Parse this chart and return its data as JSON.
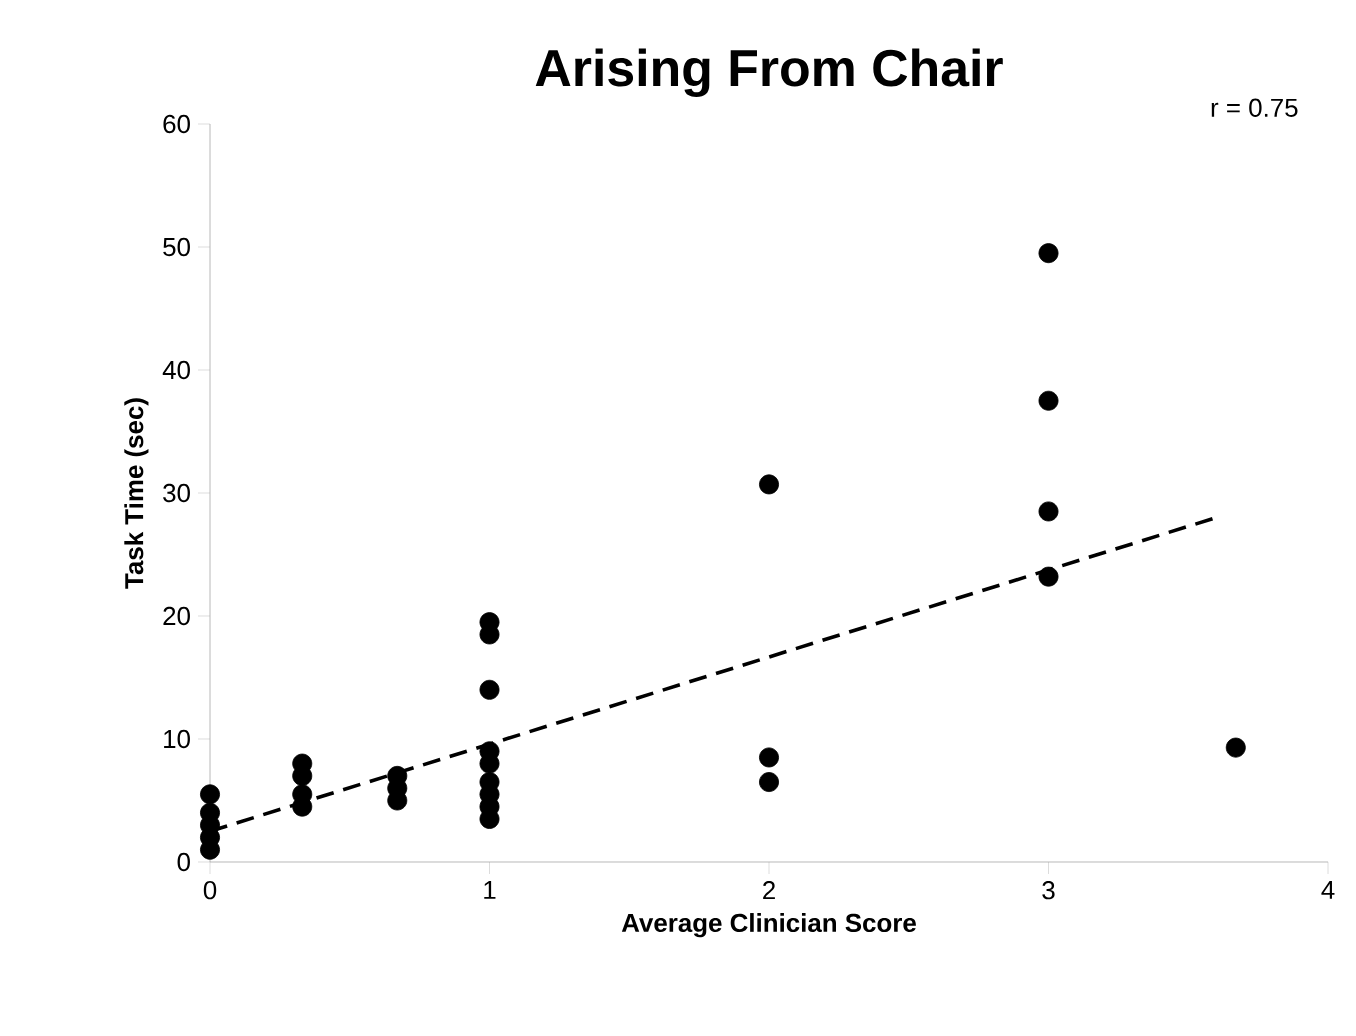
{
  "chart_data": {
    "type": "scatter",
    "title": "Arising From Chair",
    "xlabel": "Average Clinician Score",
    "ylabel": "Task Time (sec)",
    "annotations": [
      "r = 0.75"
    ],
    "xlim": [
      0,
      4
    ],
    "xticks": [
      0,
      1,
      2,
      3,
      4
    ],
    "ylim": [
      0,
      60
    ],
    "yticks": [
      0,
      10,
      20,
      30,
      40,
      50,
      60
    ],
    "grid": false,
    "series": [
      {
        "color": "#000000",
        "marker": "circle",
        "x": [
          0,
          0,
          0,
          0,
          0,
          0.33,
          0.33,
          0.33,
          0.33,
          0.67,
          0.67,
          0.67,
          1,
          1,
          1,
          1,
          1,
          1,
          1,
          1,
          1,
          2,
          2,
          2,
          3,
          3,
          3,
          3,
          3.67
        ],
        "values": [
          1,
          2,
          3,
          4,
          5.5,
          4.5,
          5.5,
          7,
          8,
          5,
          6,
          7,
          3.5,
          4.5,
          5.5,
          6.5,
          8,
          9,
          14,
          18.5,
          19.5,
          6.5,
          8.5,
          30.7,
          23.2,
          28.5,
          37.5,
          49.5,
          9.3
        ]
      },
      {
        "type": "line",
        "color": "#000000",
        "line_style": "dashed",
        "marker": "none",
        "x": [
          0,
          3.6
        ],
        "values": [
          2.5,
          28
        ]
      }
    ]
  }
}
